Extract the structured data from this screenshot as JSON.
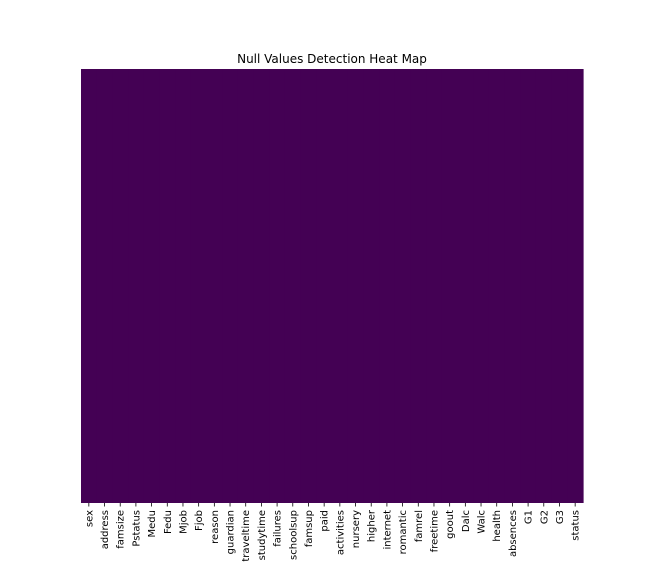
{
  "chart_data": {
    "type": "heatmap",
    "title": "Null Values Detection Heat Map",
    "xlabel": "",
    "ylabel": "",
    "x_tick_labels": [
      "sex",
      "address",
      "famsize",
      "Pstatus",
      "Medu",
      "Fedu",
      "Mjob",
      "Fjob",
      "reason",
      "guardian",
      "traveltime",
      "studytime",
      "failures",
      "schoolsup",
      "famsup",
      "paid",
      "activities",
      "nursery",
      "higher",
      "internet",
      "romantic",
      "famrel",
      "freetime",
      "goout",
      "Dalc",
      "Walc",
      "health",
      "absences",
      "G1",
      "G2",
      "G3",
      "status"
    ],
    "y_tick_labels": [],
    "cell_value_all": 0,
    "colormap": "viridis",
    "color_for_zero": "#440154",
    "grid": false,
    "legend": "none"
  }
}
